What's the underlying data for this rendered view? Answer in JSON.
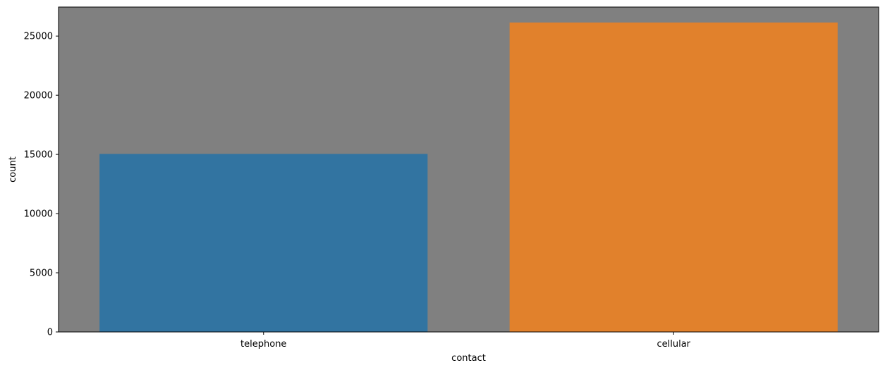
{
  "chart_data": {
    "type": "bar",
    "categories": [
      "telephone",
      "cellular"
    ],
    "values": [
      15044,
      26144
    ],
    "title": "",
    "xlabel": "contact",
    "ylabel": "count",
    "ylim": [
      0,
      27452
    ],
    "yticks": [
      0,
      5000,
      10000,
      15000,
      20000,
      25000
    ],
    "bar_colors": [
      "#3274a1",
      "#e1812c"
    ],
    "plot_background": "#808080",
    "grid": false,
    "legend": "none"
  }
}
